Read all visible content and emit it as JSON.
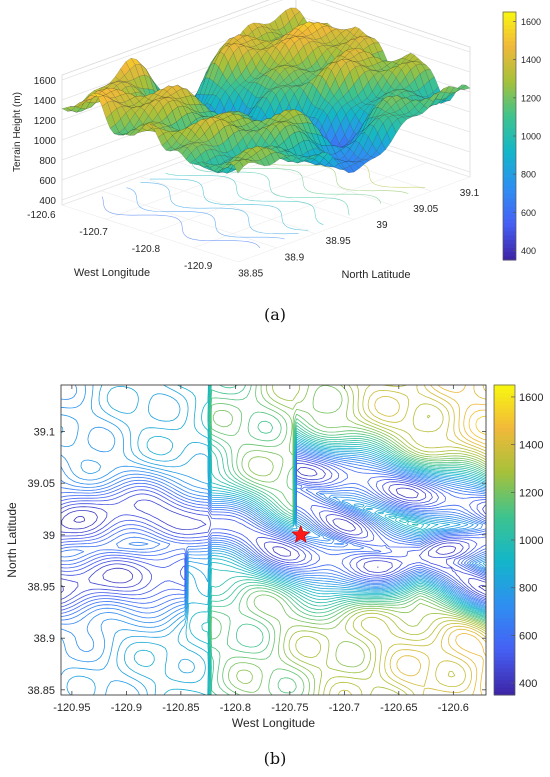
{
  "chart_data": [
    {
      "panel_label": "(a)",
      "type": "surface",
      "zlabel": "Terrain Height (m)",
      "xlabel": "West Longitude",
      "ylabel": "North Latitude",
      "x_ticks": [
        "-120.6",
        "-120.7",
        "-120.8",
        "-120.9"
      ],
      "y_ticks": [
        "38.85",
        "38.9",
        "38.95",
        "39",
        "39.05",
        "39.1"
      ],
      "z_ticks": [
        "400",
        "600",
        "800",
        "1000",
        "1200",
        "1400",
        "1600"
      ],
      "zlim": [
        350,
        1650
      ],
      "colorbar_ticks": [
        "400",
        "600",
        "800",
        "1000",
        "1200",
        "1400",
        "1600"
      ],
      "colormap": [
        "#3e26a8",
        "#4561f5",
        "#2e8ff1",
        "#13b6c9",
        "#3ec38e",
        "#a6c13a",
        "#f2b93a",
        "#f8fa0d"
      ]
    },
    {
      "panel_label": "(b)",
      "type": "contour",
      "xlabel": "West Longitude",
      "ylabel": "North Latitude",
      "xlim": [
        -120.96,
        -120.57
      ],
      "ylim": [
        38.845,
        39.145
      ],
      "x_ticks": [
        "-120.95",
        "-120.9",
        "-120.85",
        "-120.8",
        "-120.75",
        "-120.7",
        "-120.65",
        "-120.6"
      ],
      "y_ticks": [
        "38.85",
        "38.9",
        "38.95",
        "39",
        "39.05",
        "39.1"
      ],
      "colorbar_ticks": [
        "400",
        "600",
        "800",
        "1000",
        "1200",
        "1400",
        "1600"
      ],
      "clim": [
        350,
        1650
      ],
      "marker": {
        "x": -120.74,
        "y": 39.0,
        "color": "#ff1a1a",
        "shape": "star"
      }
    }
  ]
}
